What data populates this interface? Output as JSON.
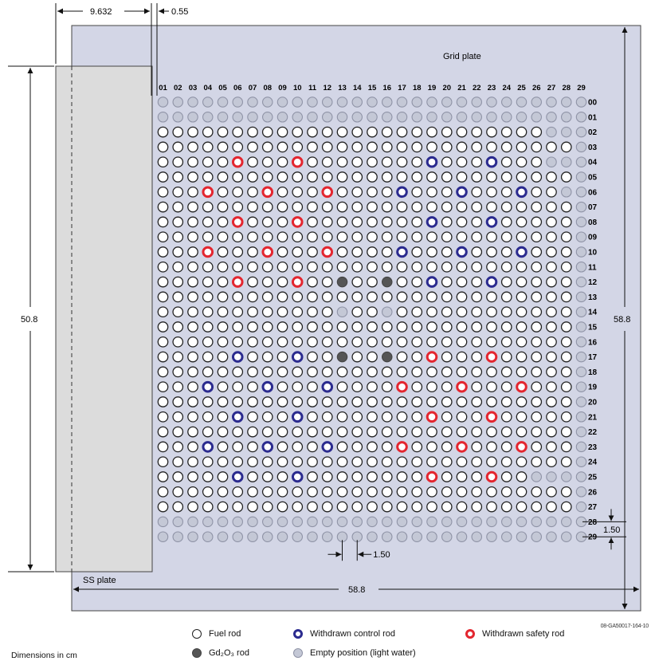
{
  "labels": {
    "grid_plate": "Grid plate",
    "ss_plate": "SS plate",
    "dim_top_left": "9.632",
    "dim_top_gap": "0.55",
    "dim_left_height": "50.8",
    "dim_right_height": "58.8",
    "dim_bottom_width": "58.8",
    "dim_pitch_x": "1.50",
    "dim_pitch_y": "1.50",
    "figure_id": "08-GA50017-164-10",
    "dimensions_note": "Dimensions in cm"
  },
  "columns": [
    "01",
    "02",
    "03",
    "04",
    "05",
    "06",
    "07",
    "08",
    "09",
    "10",
    "11",
    "12",
    "13",
    "14",
    "15",
    "16",
    "17",
    "18",
    "19",
    "20",
    "21",
    "22",
    "23",
    "24",
    "25",
    "26",
    "27",
    "28",
    "29"
  ],
  "rows": [
    "00",
    "01",
    "02",
    "03",
    "04",
    "05",
    "06",
    "07",
    "08",
    "09",
    "10",
    "11",
    "12",
    "13",
    "14",
    "15",
    "16",
    "17",
    "18",
    "19",
    "20",
    "21",
    "22",
    "23",
    "24",
    "25",
    "26",
    "27",
    "28",
    "29"
  ],
  "legend": {
    "fuel": "Fuel rod",
    "control": "Withdrawn control rod",
    "safety": "Withdrawn safety rod",
    "gd": "Gd₂O₃ rod",
    "empty": "Empty position (light water)"
  },
  "colors": {
    "grid_plate_fill": "#d3d6e6",
    "ss_plate_fill": "#dcdcdc",
    "control": "#2b2b8f",
    "safety": "#e3262f",
    "gd": "#555555",
    "empty": "#c4c8d6",
    "fuel": "#ffffff"
  },
  "special_rods": {
    "safety": [
      [
        "06",
        "04"
      ],
      [
        "10",
        "04"
      ],
      [
        "04",
        "06"
      ],
      [
        "08",
        "06"
      ],
      [
        "12",
        "06"
      ],
      [
        "06",
        "08"
      ],
      [
        "10",
        "08"
      ],
      [
        "04",
        "10"
      ],
      [
        "08",
        "10"
      ],
      [
        "12",
        "10"
      ],
      [
        "06",
        "12"
      ],
      [
        "10",
        "12"
      ],
      [
        "19",
        "17"
      ],
      [
        "23",
        "17"
      ],
      [
        "17",
        "19"
      ],
      [
        "21",
        "19"
      ],
      [
        "25",
        "19"
      ],
      [
        "19",
        "21"
      ],
      [
        "23",
        "21"
      ],
      [
        "17",
        "23"
      ],
      [
        "21",
        "23"
      ],
      [
        "25",
        "23"
      ],
      [
        "19",
        "25"
      ],
      [
        "23",
        "25"
      ]
    ],
    "control": [
      [
        "19",
        "04"
      ],
      [
        "23",
        "04"
      ],
      [
        "17",
        "06"
      ],
      [
        "21",
        "06"
      ],
      [
        "25",
        "06"
      ],
      [
        "19",
        "08"
      ],
      [
        "23",
        "08"
      ],
      [
        "17",
        "10"
      ],
      [
        "21",
        "10"
      ],
      [
        "25",
        "10"
      ],
      [
        "19",
        "12"
      ],
      [
        "23",
        "12"
      ],
      [
        "06",
        "17"
      ],
      [
        "10",
        "17"
      ],
      [
        "04",
        "19"
      ],
      [
        "08",
        "19"
      ],
      [
        "12",
        "19"
      ],
      [
        "06",
        "21"
      ],
      [
        "10",
        "21"
      ],
      [
        "04",
        "23"
      ],
      [
        "08",
        "23"
      ],
      [
        "12",
        "23"
      ],
      [
        "06",
        "25"
      ],
      [
        "10",
        "25"
      ]
    ],
    "gd": [
      [
        "13",
        "12"
      ],
      [
        "16",
        "12"
      ],
      [
        "13",
        "17"
      ],
      [
        "16",
        "17"
      ]
    ],
    "empty_interior": [
      [
        "13",
        "14"
      ],
      [
        "16",
        "14"
      ]
    ]
  },
  "empty_regions": {
    "rows_all_empty": [
      "00",
      "01",
      "28",
      "29"
    ],
    "rows_right_empty_cols": {
      "02": [
        "27",
        "28",
        "29"
      ],
      "04": [
        "27",
        "28",
        "29"
      ],
      "06": [
        "28",
        "29"
      ],
      "25": [
        "26",
        "27",
        "28",
        "29"
      ],
      "26": [
        "29"
      ],
      "27": [
        "29"
      ]
    },
    "col_29_empty_rows": [
      "02",
      "03",
      "04",
      "05",
      "06",
      "07",
      "08",
      "09",
      "10",
      "11",
      "12",
      "13",
      "14",
      "15",
      "16",
      "17",
      "18",
      "19",
      "20",
      "21",
      "22",
      "23",
      "24",
      "25",
      "26",
      "27"
    ]
  }
}
